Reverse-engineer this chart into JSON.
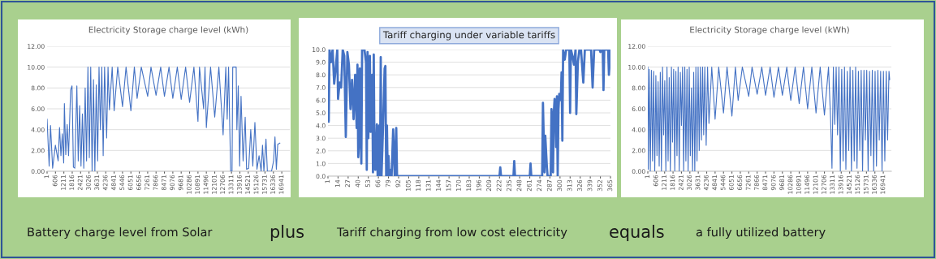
{
  "chart_data": [
    {
      "type": "line",
      "title": "Electricity Storage charge level (kWh)",
      "grid": "y",
      "xlim": [
        1,
        17520
      ],
      "ylim": [
        0,
        12
      ],
      "xticks": [
        1,
        606,
        1211,
        1816,
        2421,
        3026,
        3631,
        4236,
        4841,
        5446,
        6051,
        6656,
        7261,
        7866,
        8471,
        9076,
        9681,
        10286,
        10891,
        11496,
        12101,
        12706,
        13311,
        13916,
        14521,
        15126,
        15731,
        16336,
        16941
      ],
      "yticks": [
        {
          "value": 0,
          "label": "0.00"
        },
        {
          "value": 2,
          "label": "2.00"
        },
        {
          "value": 4,
          "label": "4.00"
        },
        {
          "value": 6,
          "label": "6.00"
        },
        {
          "value": 8,
          "label": "8.00"
        },
        {
          "value": 10,
          "label": "10.00"
        },
        {
          "value": 12,
          "label": "12.00"
        }
      ],
      "x": [
        1,
        150,
        250,
        400,
        600,
        800,
        900,
        1000,
        1100,
        1200,
        1250,
        1350,
        1450,
        1550,
        1700,
        1800,
        1900,
        2000,
        2150,
        2250,
        2350,
        2450,
        2550,
        2650,
        2750,
        2850,
        2950,
        3050,
        3150,
        3250,
        3350,
        3450,
        3550,
        3650,
        3750,
        3850,
        3950,
        4050,
        4150,
        4300,
        4400,
        4500,
        4700,
        4841,
        5100,
        5446,
        5700,
        6051,
        6300,
        6500,
        6800,
        7261,
        7500,
        7866,
        8200,
        8471,
        8800,
        9076,
        9400,
        9681,
        10000,
        10286,
        10600,
        10891,
        11000,
        11300,
        11400,
        11496,
        11800,
        12101,
        12400,
        12706,
        12900,
        13000,
        13100,
        13250,
        13350,
        13400,
        13650,
        13700,
        13800,
        13900,
        14000,
        14150,
        14300,
        14400,
        14550,
        14700,
        14850,
        15000,
        15150,
        15300,
        15450,
        15550,
        15650,
        15800,
        15900,
        16200,
        16350,
        16450,
        16550,
        16650,
        16800
      ],
      "series": [
        {
          "color": "#4472c4",
          "values": [
            5.0,
            0.5,
            4.4,
            0.3,
            2.5,
            1.0,
            4.2,
            1.5,
            3.6,
            0.8,
            6.5,
            1.6,
            4.5,
            1.5,
            7.8,
            8.2,
            0.4,
            0.3,
            8.2,
            1.0,
            6.3,
            0.5,
            5.5,
            0.3,
            8.0,
            1.0,
            10,
            1.3,
            10,
            0,
            8.8,
            0,
            8.3,
            1.0,
            10,
            4.0,
            10,
            1.5,
            10,
            3.2,
            10,
            5.9,
            10,
            5.8,
            10,
            6.2,
            10,
            5.8,
            10,
            7.0,
            10,
            7.2,
            10,
            7.3,
            10,
            7.2,
            10,
            7.0,
            10,
            6.9,
            10,
            6.6,
            10,
            4.8,
            10,
            6.0,
            10,
            4.2,
            10,
            5.2,
            10,
            3.5,
            10,
            5.0,
            10,
            0,
            0,
            10,
            10,
            4.0,
            8.2,
            0.5,
            7.2,
            1.0,
            5.2,
            0.2,
            0.3,
            4.0,
            0.5,
            4.7,
            0.2,
            1.5,
            0,
            2.5,
            0,
            3.1,
            0,
            0,
            1.0,
            3.3,
            0.2,
            2.6,
            2.7
          ]
        }
      ],
      "annotations": [
        "Battery charge level from Solar",
        "plus"
      ]
    },
    {
      "type": "line",
      "title": "Tariff charging under variable tariffs",
      "grid": "y",
      "xlim": [
        1,
        365
      ],
      "ylim": [
        0,
        10
      ],
      "xticks": [
        1,
        14,
        27,
        40,
        53,
        66,
        79,
        92,
        105,
        118,
        131,
        144,
        157,
        170,
        183,
        196,
        209,
        222,
        235,
        248,
        261,
        274,
        287,
        300,
        313,
        326,
        339,
        352,
        365
      ],
      "yticks": [
        {
          "value": 0,
          "label": "0.0"
        },
        {
          "value": 1,
          "label": "1.0"
        },
        {
          "value": 2,
          "label": "2.0"
        },
        {
          "value": 3,
          "label": "3.0"
        },
        {
          "value": 4,
          "label": "4.0"
        },
        {
          "value": 5,
          "label": "5.0"
        },
        {
          "value": 6,
          "label": "6.0"
        },
        {
          "value": 7,
          "label": "7.0"
        },
        {
          "value": 8,
          "label": "8.0"
        },
        {
          "value": 9,
          "label": "9.0"
        },
        {
          "value": 10,
          "label": "10.0"
        }
      ],
      "x": [
        1,
        2,
        3,
        5,
        7,
        9,
        11,
        13,
        14,
        16,
        18,
        20,
        22,
        24,
        26,
        28,
        30,
        32,
        34,
        36,
        38,
        39,
        40,
        41,
        42,
        44,
        45,
        48,
        50,
        51,
        52,
        53,
        55,
        56,
        58,
        59,
        60,
        61,
        62,
        64,
        65,
        67,
        68,
        69,
        70,
        72,
        74,
        75,
        76,
        77,
        78,
        79,
        80,
        82,
        83,
        85,
        87,
        89,
        90,
        222,
        223,
        224,
        240,
        241,
        242,
        261,
        262,
        263,
        277,
        278,
        280,
        281,
        283,
        284,
        288,
        289,
        290,
        291,
        292,
        293,
        294,
        295,
        296,
        297,
        298,
        299,
        301,
        302,
        303,
        304,
        306,
        308,
        312,
        313,
        314,
        316,
        318,
        320,
        321,
        323,
        325,
        327,
        330,
        332,
        340,
        342,
        344,
        351,
        352,
        355,
        356,
        357,
        362,
        363,
        365
      ],
      "series": [
        {
          "color": "#4472c4",
          "values": [
            5.8,
            4.3,
            10,
            9,
            10,
            7.3,
            8.5,
            10,
            6.1,
            7.4,
            7.0,
            10,
            9.5,
            3.1,
            9.8,
            8.8,
            5.3,
            7.6,
            4.5,
            8.0,
            3.8,
            8.8,
            1.5,
            2.5,
            8.5,
            1.0,
            10,
            10,
            9.0,
            0.5,
            9.8,
            3.0,
            9.5,
            3.5,
            8.0,
            0.3,
            9.6,
            1.0,
            0.5,
            4.1,
            0,
            4.0,
            0,
            9.4,
            0,
            4.0,
            8.5,
            8.7,
            0,
            4.0,
            0,
            1.6,
            0,
            0.5,
            0,
            3.7,
            0,
            3.8,
            0,
            0,
            0.7,
            0,
            0,
            1.2,
            0,
            0,
            1.0,
            0,
            0,
            5.8,
            0.3,
            3.2,
            0.8,
            0,
            0,
            5.3,
            4.0,
            0.3,
            5.0,
            6.1,
            5.2,
            2.3,
            6.3,
            0,
            5.3,
            6.5,
            6.0,
            8.2,
            2.8,
            10,
            9.2,
            10,
            10,
            5.0,
            10,
            9.5,
            8.8,
            10,
            4.9,
            9.0,
            10,
            10,
            7.4,
            10,
            10,
            7.0,
            10,
            10,
            9.8,
            10,
            6.8,
            10,
            10,
            8.0,
            10
          ]
        }
      ],
      "annotations": [
        "Tariff charging from low cost electricity",
        "equals"
      ]
    },
    {
      "type": "line",
      "title": "Electricity Storage charge level (kWh)",
      "grid": "y",
      "xlim": [
        1,
        17520
      ],
      "ylim": [
        0,
        12
      ],
      "xticks": [
        1,
        606,
        1211,
        1816,
        2421,
        3026,
        3631,
        4236,
        4841,
        5446,
        6051,
        6656,
        7261,
        7866,
        8471,
        9076,
        9681,
        10286,
        10891,
        11496,
        12101,
        12706,
        13311,
        13916,
        14521,
        15126,
        15731,
        16336,
        16941
      ],
      "yticks": [
        {
          "value": 0,
          "label": "0.00"
        },
        {
          "value": 2,
          "label": "2.00"
        },
        {
          "value": 4,
          "label": "4.00"
        },
        {
          "value": 6,
          "label": "6.00"
        },
        {
          "value": 8,
          "label": "8.00"
        },
        {
          "value": 10,
          "label": "10.00"
        },
        {
          "value": 12,
          "label": "12.00"
        }
      ],
      "x": [
        1,
        30,
        100,
        180,
        260,
        340,
        420,
        500,
        580,
        660,
        740,
        820,
        900,
        980,
        1060,
        1140,
        1220,
        1300,
        1380,
        1460,
        1540,
        1620,
        1700,
        1780,
        1860,
        1940,
        2020,
        2100,
        2180,
        2260,
        2340,
        2420,
        2500,
        2580,
        2660,
        2740,
        2820,
        2900,
        2980,
        3060,
        3140,
        3220,
        3300,
        3380,
        3460,
        3540,
        3620,
        3700,
        3780,
        3860,
        3940,
        4020,
        4100,
        4200,
        4300,
        4400,
        4600,
        4841,
        5100,
        5446,
        5700,
        6051,
        6300,
        6500,
        6800,
        7261,
        7500,
        7866,
        8200,
        8471,
        8800,
        9076,
        9400,
        9681,
        10000,
        10286,
        10600,
        10891,
        11200,
        11496,
        11800,
        12101,
        12400,
        12706,
        13000,
        13150,
        13250,
        13350,
        13450,
        13550,
        13650,
        13750,
        13850,
        13950,
        14050,
        14150,
        14250,
        14350,
        14450,
        14550,
        14650,
        14750,
        14850,
        14950,
        15050,
        15150,
        15250,
        15350,
        15450,
        15550,
        15650,
        15750,
        15850,
        15950,
        16050,
        16150,
        16250,
        16350,
        16450,
        16550,
        16650,
        16750,
        16850,
        16950,
        17050,
        17150,
        17250,
        17350,
        17400
      ],
      "series": [
        {
          "color": "#4472c4",
          "values": [
            10,
            0.2,
            9.8,
            0,
            9.7,
            1.0,
            9.6,
            0,
            9.2,
            1.5,
            8.6,
            0.5,
            9.5,
            0,
            10,
            3.5,
            8.7,
            0,
            10,
            1.0,
            9.0,
            0,
            10,
            2.8,
            9.8,
            0,
            9.6,
            1.5,
            10,
            0,
            9.5,
            4.4,
            10,
            0,
            10,
            1.0,
            9.8,
            0,
            10,
            1.5,
            8.0,
            0,
            9.5,
            0,
            10,
            1.0,
            10,
            2.0,
            10,
            3.0,
            10,
            3.5,
            10,
            2.5,
            10,
            4.6,
            10,
            5.0,
            10,
            5.6,
            10,
            5.3,
            10,
            6.8,
            10,
            7.2,
            10,
            7.4,
            10,
            7.3,
            10,
            7.1,
            10,
            7.3,
            10,
            6.8,
            10,
            6.5,
            10,
            6.0,
            10,
            5.6,
            10,
            5.4,
            10,
            5.0,
            0.3,
            10,
            4.5,
            10,
            3.5,
            10,
            0,
            9.8,
            1.0,
            10,
            0.2,
            9.6,
            2.0,
            10,
            0,
            9.7,
            1.0,
            10,
            0.3,
            9.6,
            2.0,
            9.7,
            0,
            9.7,
            3.0,
            9.7,
            0,
            9.6,
            1.5,
            9.7,
            0,
            9.6,
            0.5,
            9.7,
            3.0,
            9.6,
            0,
            9.6,
            1.0,
            9.6,
            3.0,
            9.6,
            8.8
          ]
        }
      ],
      "annotations": [
        "a fully utilized battery"
      ]
    }
  ]
}
